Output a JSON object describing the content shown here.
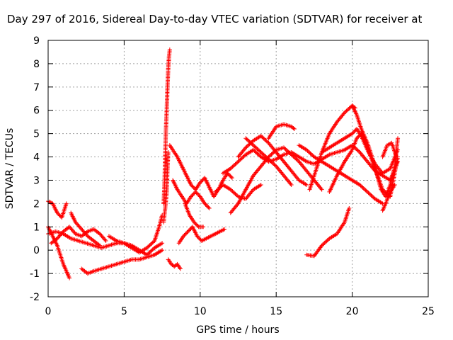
{
  "chart_data": {
    "type": "scatter",
    "title": "Day 297 of 2016, Sidereal Day-to-day VTEC variation (SDTVAR) for receiver at",
    "xlabel": "GPS time / hours",
    "ylabel": "SDTVAR / TECUs",
    "xlim": [
      0,
      25
    ],
    "ylim": [
      -2,
      9
    ],
    "xticks": [
      0,
      5,
      10,
      15,
      20,
      25
    ],
    "yticks": [
      -2,
      -1,
      0,
      1,
      2,
      3,
      4,
      5,
      6,
      7,
      8,
      9
    ],
    "grid": true,
    "marker": "+",
    "color": "#ff0000",
    "tracks": [
      [
        [
          0.0,
          2.1
        ],
        [
          0.3,
          2.0
        ],
        [
          0.6,
          1.6
        ],
        [
          0.9,
          1.4
        ],
        [
          1.1,
          1.8
        ],
        [
          1.2,
          2.0
        ]
      ],
      [
        [
          0.0,
          1.0
        ],
        [
          0.3,
          0.6
        ],
        [
          0.6,
          0.2
        ],
        [
          0.8,
          -0.2
        ],
        [
          1.0,
          -0.6
        ],
        [
          1.2,
          -0.9
        ],
        [
          1.4,
          -1.2
        ]
      ],
      [
        [
          0.0,
          0.7
        ],
        [
          0.5,
          0.8
        ],
        [
          1.0,
          0.7
        ],
        [
          1.5,
          0.5
        ],
        [
          2.0,
          0.4
        ],
        [
          2.5,
          0.3
        ],
        [
          3.0,
          0.2
        ],
        [
          3.5,
          0.1
        ],
        [
          4.0,
          0.2
        ],
        [
          4.5,
          0.3
        ],
        [
          5.0,
          0.3
        ],
        [
          5.5,
          0.2
        ],
        [
          6.0,
          0.0
        ],
        [
          6.5,
          -0.2
        ],
        [
          7.0,
          0.1
        ],
        [
          7.5,
          0.3
        ]
      ],
      [
        [
          0.2,
          0.3
        ],
        [
          0.6,
          0.5
        ],
        [
          1.0,
          0.8
        ],
        [
          1.4,
          1.0
        ],
        [
          1.8,
          0.7
        ],
        [
          2.2,
          0.6
        ],
        [
          2.6,
          0.8
        ],
        [
          3.0,
          0.9
        ],
        [
          3.4,
          0.7
        ],
        [
          3.8,
          0.4
        ]
      ],
      [
        [
          1.5,
          1.6
        ],
        [
          1.8,
          1.2
        ],
        [
          2.2,
          0.9
        ],
        [
          2.6,
          0.6
        ],
        [
          3.0,
          0.4
        ],
        [
          3.4,
          0.2
        ]
      ],
      [
        [
          2.2,
          -0.8
        ],
        [
          2.6,
          -1.0
        ],
        [
          3.0,
          -0.9
        ],
        [
          3.5,
          -0.8
        ],
        [
          4.0,
          -0.7
        ],
        [
          4.5,
          -0.6
        ],
        [
          5.0,
          -0.5
        ],
        [
          5.5,
          -0.4
        ],
        [
          6.0,
          -0.4
        ],
        [
          6.5,
          -0.3
        ],
        [
          7.0,
          -0.2
        ],
        [
          7.5,
          0.0
        ]
      ],
      [
        [
          4.0,
          0.6
        ],
        [
          4.5,
          0.4
        ],
        [
          5.0,
          0.3
        ],
        [
          5.5,
          0.1
        ],
        [
          6.0,
          -0.1
        ],
        [
          6.5,
          0.1
        ],
        [
          7.0,
          0.4
        ],
        [
          7.3,
          1.0
        ],
        [
          7.5,
          1.5
        ]
      ],
      [
        [
          7.6,
          2.0
        ],
        [
          7.65,
          2.8
        ],
        [
          7.7,
          4.0
        ],
        [
          7.75,
          5.2
        ],
        [
          7.8,
          6.0
        ],
        [
          7.85,
          7.0
        ],
        [
          7.9,
          7.8
        ],
        [
          7.95,
          8.3
        ],
        [
          8.0,
          8.6
        ]
      ],
      [
        [
          7.6,
          1.2
        ],
        [
          7.7,
          1.8
        ],
        [
          7.8,
          2.5
        ],
        [
          7.85,
          3.5
        ],
        [
          7.9,
          4.2
        ]
      ],
      [
        [
          7.9,
          -0.4
        ],
        [
          8.1,
          -0.6
        ],
        [
          8.3,
          -0.7
        ],
        [
          8.5,
          -0.6
        ],
        [
          8.7,
          -0.8
        ]
      ],
      [
        [
          8.0,
          4.5
        ],
        [
          8.2,
          4.3
        ],
        [
          8.5,
          4.0
        ],
        [
          8.8,
          3.6
        ],
        [
          9.1,
          3.2
        ],
        [
          9.4,
          2.8
        ],
        [
          9.7,
          2.6
        ],
        [
          10.0,
          2.9
        ],
        [
          10.3,
          3.1
        ],
        [
          10.6,
          2.7
        ],
        [
          10.9,
          2.3
        ],
        [
          11.2,
          2.6
        ],
        [
          11.5,
          3.0
        ],
        [
          11.8,
          3.3
        ],
        [
          12.1,
          3.1
        ]
      ],
      [
        [
          8.2,
          3.0
        ],
        [
          8.5,
          2.6
        ],
        [
          8.8,
          2.3
        ],
        [
          9.1,
          2.0
        ],
        [
          9.4,
          2.3
        ],
        [
          9.7,
          2.5
        ],
        [
          10.0,
          2.3
        ],
        [
          10.3,
          2.0
        ],
        [
          10.6,
          1.8
        ]
      ],
      [
        [
          8.6,
          0.3
        ],
        [
          8.9,
          0.6
        ],
        [
          9.2,
          0.8
        ],
        [
          9.5,
          1.0
        ],
        [
          9.8,
          0.6
        ],
        [
          10.1,
          0.4
        ],
        [
          10.4,
          0.5
        ],
        [
          10.7,
          0.6
        ],
        [
          11.0,
          0.7
        ],
        [
          11.3,
          0.8
        ],
        [
          11.6,
          0.9
        ]
      ],
      [
        [
          9.0,
          2.0
        ],
        [
          9.3,
          1.5
        ],
        [
          9.6,
          1.2
        ],
        [
          9.9,
          1.0
        ],
        [
          10.2,
          1.0
        ]
      ],
      [
        [
          11.0,
          2.5
        ],
        [
          11.5,
          2.8
        ],
        [
          12.0,
          2.6
        ],
        [
          12.5,
          2.3
        ],
        [
          13.0,
          2.2
        ],
        [
          13.5,
          2.6
        ],
        [
          14.0,
          2.8
        ]
      ],
      [
        [
          11.5,
          3.3
        ],
        [
          12.0,
          3.5
        ],
        [
          12.5,
          3.8
        ],
        [
          13.0,
          4.1
        ],
        [
          13.5,
          4.3
        ],
        [
          14.0,
          4.0
        ],
        [
          14.5,
          3.8
        ],
        [
          15.0,
          3.9
        ],
        [
          15.5,
          4.1
        ],
        [
          16.0,
          4.2
        ],
        [
          16.5,
          4.0
        ],
        [
          17.0,
          3.8
        ],
        [
          17.5,
          3.7
        ],
        [
          18.0,
          3.9
        ],
        [
          18.5,
          4.1
        ],
        [
          19.0,
          4.2
        ],
        [
          19.5,
          4.3
        ],
        [
          20.0,
          4.5
        ],
        [
          20.5,
          4.2
        ],
        [
          21.0,
          3.8
        ],
        [
          21.5,
          3.4
        ],
        [
          22.0,
          3.2
        ],
        [
          22.5,
          3.0
        ],
        [
          23.0,
          3.8
        ]
      ],
      [
        [
          12.0,
          1.6
        ],
        [
          12.5,
          2.0
        ],
        [
          13.0,
          2.6
        ],
        [
          13.5,
          3.2
        ],
        [
          14.0,
          3.6
        ],
        [
          14.5,
          4.0
        ],
        [
          15.0,
          4.3
        ],
        [
          15.5,
          4.4
        ],
        [
          16.0,
          4.1
        ],
        [
          16.5,
          3.8
        ],
        [
          17.0,
          3.4
        ],
        [
          17.5,
          3.0
        ],
        [
          18.0,
          2.6
        ]
      ],
      [
        [
          12.5,
          4.0
        ],
        [
          13.0,
          4.4
        ],
        [
          13.5,
          4.7
        ],
        [
          14.0,
          4.9
        ],
        [
          14.5,
          4.6
        ],
        [
          15.0,
          4.2
        ],
        [
          15.5,
          3.8
        ],
        [
          16.0,
          3.4
        ],
        [
          16.5,
          3.0
        ],
        [
          17.0,
          2.8
        ]
      ],
      [
        [
          13.0,
          4.8
        ],
        [
          13.5,
          4.5
        ],
        [
          14.0,
          4.2
        ],
        [
          14.5,
          3.9
        ],
        [
          15.0,
          3.6
        ],
        [
          15.5,
          3.2
        ],
        [
          16.0,
          2.8
        ]
      ],
      [
        [
          14.5,
          4.8
        ],
        [
          15.0,
          5.3
        ],
        [
          15.5,
          5.4
        ],
        [
          16.0,
          5.3
        ],
        [
          16.2,
          5.2
        ]
      ],
      [
        [
          16.5,
          4.5
        ],
        [
          17.0,
          4.3
        ],
        [
          17.5,
          4.0
        ],
        [
          18.0,
          3.8
        ],
        [
          18.5,
          3.6
        ],
        [
          19.0,
          3.4
        ],
        [
          19.5,
          3.2
        ],
        [
          20.0,
          3.0
        ],
        [
          20.5,
          2.8
        ],
        [
          21.0,
          2.5
        ],
        [
          21.5,
          2.2
        ],
        [
          22.0,
          2.0
        ]
      ],
      [
        [
          17.0,
          -0.2
        ],
        [
          17.5,
          -0.25
        ],
        [
          18.0,
          0.2
        ],
        [
          18.5,
          0.5
        ],
        [
          19.0,
          0.7
        ],
        [
          19.5,
          1.2
        ],
        [
          19.8,
          1.8
        ]
      ],
      [
        [
          17.2,
          2.6
        ],
        [
          17.5,
          3.2
        ],
        [
          18.0,
          4.2
        ],
        [
          18.5,
          5.0
        ],
        [
          19.0,
          5.5
        ],
        [
          19.5,
          5.9
        ],
        [
          20.0,
          6.2
        ],
        [
          20.2,
          6.1
        ]
      ],
      [
        [
          18.0,
          4.2
        ],
        [
          18.5,
          4.4
        ],
        [
          19.0,
          4.6
        ],
        [
          19.5,
          4.8
        ],
        [
          20.0,
          5.0
        ],
        [
          20.3,
          5.2
        ],
        [
          20.6,
          4.9
        ],
        [
          21.0,
          4.3
        ],
        [
          21.5,
          3.7
        ],
        [
          22.0,
          3.3
        ],
        [
          22.5,
          3.5
        ],
        [
          23.0,
          4.3
        ]
      ],
      [
        [
          18.5,
          2.5
        ],
        [
          19.0,
          3.2
        ],
        [
          19.5,
          3.8
        ],
        [
          20.0,
          4.3
        ],
        [
          20.3,
          4.8
        ],
        [
          20.6,
          5.0
        ],
        [
          21.0,
          4.4
        ],
        [
          21.5,
          3.5
        ],
        [
          22.0,
          2.6
        ],
        [
          22.5,
          2.3
        ],
        [
          23.0,
          4.0
        ]
      ],
      [
        [
          20.0,
          6.2
        ],
        [
          20.3,
          5.8
        ],
        [
          20.6,
          5.2
        ],
        [
          21.0,
          4.6
        ],
        [
          21.3,
          4.0
        ],
        [
          21.6,
          3.3
        ],
        [
          21.9,
          2.6
        ],
        [
          22.2,
          2.3
        ],
        [
          22.5,
          2.8
        ],
        [
          22.8,
          3.6
        ],
        [
          23.0,
          4.8
        ]
      ],
      [
        [
          22.0,
          1.7
        ],
        [
          22.2,
          2.0
        ],
        [
          22.5,
          2.5
        ],
        [
          22.8,
          2.8
        ]
      ],
      [
        [
          22.0,
          4.0
        ],
        [
          22.3,
          4.5
        ],
        [
          22.6,
          4.6
        ],
        [
          22.9,
          4.0
        ]
      ]
    ]
  }
}
